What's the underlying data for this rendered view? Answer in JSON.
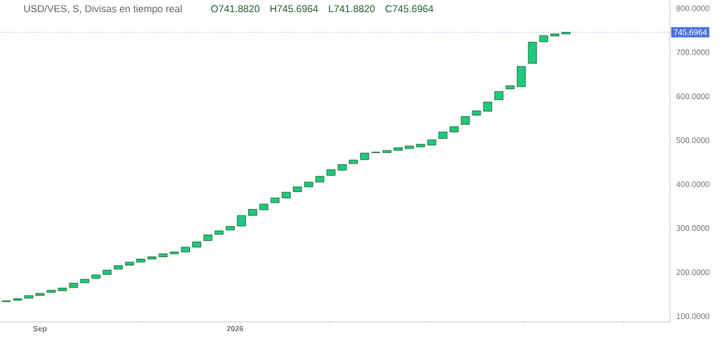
{
  "chart_data": {
    "type": "candlestick",
    "title": "USD/VES, S, Divisas en tiempo real",
    "annotations": [
      "O741.8820",
      "H745.6964",
      "L741.8820",
      "C745.6964"
    ],
    "color": "#1ec97b",
    "x": [
      "2025-08-11",
      "2025-08-18",
      "2025-08-25",
      "2025-09-01",
      "2025-09-08",
      "2025-09-15",
      "2025-09-22",
      "2025-09-29",
      "2025-10-06",
      "2025-10-13",
      "2025-10-20",
      "2025-10-27",
      "2025-11-03",
      "2025-11-10",
      "2025-11-17",
      "2025-11-24",
      "2025-12-01",
      "2025-12-08",
      "2025-12-15",
      "2025-12-22",
      "2025-12-29",
      "2026-01-05",
      "2026-01-12",
      "2026-01-19",
      "2026-01-26",
      "2026-02-02",
      "2026-02-09",
      "2026-02-16",
      "2026-02-23",
      "2026-03-02",
      "2026-03-09",
      "2026-03-16",
      "2026-03-23",
      "2026-03-30",
      "2026-04-06",
      "2026-04-13",
      "2026-04-20",
      "2026-04-27",
      "2026-05-04",
      "2026-05-11",
      "2026-05-18",
      "2026-05-25",
      "2026-06-01",
      "2026-06-08",
      "2026-06-15",
      "2026-06-22",
      "2026-06-29",
      "2026-07-06",
      "2026-07-13",
      "2026-07-20",
      "2026-07-27"
    ],
    "ohlc": [
      [
        133,
        135,
        133,
        135
      ],
      [
        136,
        140,
        136,
        140
      ],
      [
        141,
        147,
        141,
        147
      ],
      [
        147,
        152,
        147,
        152
      ],
      [
        154,
        159,
        154,
        159
      ],
      [
        158,
        164,
        158,
        164
      ],
      [
        165,
        175,
        165,
        175
      ],
      [
        176,
        184,
        176,
        184
      ],
      [
        186,
        194,
        186,
        194
      ],
      [
        195,
        205,
        195,
        205
      ],
      [
        207,
        215,
        207,
        215
      ],
      [
        216,
        223,
        216,
        223
      ],
      [
        223,
        230,
        223,
        230
      ],
      [
        230,
        235,
        230,
        235
      ],
      [
        235,
        242,
        235,
        242
      ],
      [
        242,
        246,
        242,
        246
      ],
      [
        246,
        257,
        246,
        257
      ],
      [
        257,
        269,
        257,
        269
      ],
      [
        272,
        285,
        272,
        285
      ],
      [
        286,
        294,
        286,
        294
      ],
      [
        296,
        304,
        296,
        304
      ],
      [
        305,
        329,
        305,
        329
      ],
      [
        329,
        343,
        329,
        343
      ],
      [
        342,
        355,
        342,
        355
      ],
      [
        358,
        369,
        358,
        369
      ],
      [
        369,
        382,
        369,
        382
      ],
      [
        383,
        394,
        383,
        394
      ],
      [
        394,
        405,
        394,
        405
      ],
      [
        405,
        418,
        405,
        418
      ],
      [
        420,
        433,
        420,
        433
      ],
      [
        432,
        445,
        432,
        445
      ],
      [
        447,
        455,
        447,
        455
      ],
      [
        456,
        471,
        456,
        471
      ],
      [
        472,
        473,
        472,
        473
      ],
      [
        472,
        477,
        472,
        477
      ],
      [
        477,
        483,
        477,
        483
      ],
      [
        481,
        487,
        481,
        487
      ],
      [
        485,
        491,
        485,
        491
      ],
      [
        489,
        501,
        489,
        501
      ],
      [
        504,
        519,
        504,
        519
      ],
      [
        519,
        531,
        519,
        531
      ],
      [
        536,
        554,
        536,
        554
      ],
      [
        557,
        567,
        557,
        567
      ],
      [
        566,
        587,
        566,
        587
      ],
      [
        592,
        611,
        592,
        611
      ],
      [
        617,
        624,
        617,
        624
      ],
      [
        622,
        668,
        622,
        668
      ],
      [
        675,
        723,
        675,
        723
      ],
      [
        724,
        738,
        724,
        738
      ],
      [
        737,
        742,
        737,
        742
      ],
      [
        741.882,
        745.6964,
        741.882,
        745.6964
      ]
    ],
    "xlim": [
      "2025-08-07",
      "2026-09-30"
    ],
    "xticks": [
      {
        "value": "2025-09-01",
        "label": "Sep"
      },
      {
        "value": "2025-11-01",
        "label": null
      },
      {
        "value": "2026-01-01",
        "label": "2026"
      },
      {
        "value": "2026-03-01",
        "label": null
      },
      {
        "value": "2026-05-01",
        "label": null
      },
      {
        "value": "2026-07-01",
        "label": null
      },
      {
        "value": "2026-09-01",
        "label": null
      }
    ],
    "ylim": [
      87,
      819
    ],
    "yticks": [
      {
        "value": 100,
        "label": "100.0000"
      },
      {
        "value": 200,
        "label": "200.0000"
      },
      {
        "value": 300,
        "label": "300.0000"
      },
      {
        "value": 400,
        "label": "400.0000"
      },
      {
        "value": 500,
        "label": "500.0000"
      },
      {
        "value": 600,
        "label": "600.0000"
      },
      {
        "value": 700,
        "label": "700.0000"
      },
      {
        "value": 800,
        "label": "800.0000"
      }
    ],
    "ref_lines": [
      {
        "axis": "y",
        "value": 745.6964,
        "label": "745.6964",
        "color": "#4a72e8",
        "line_style": "dotted"
      }
    ]
  }
}
